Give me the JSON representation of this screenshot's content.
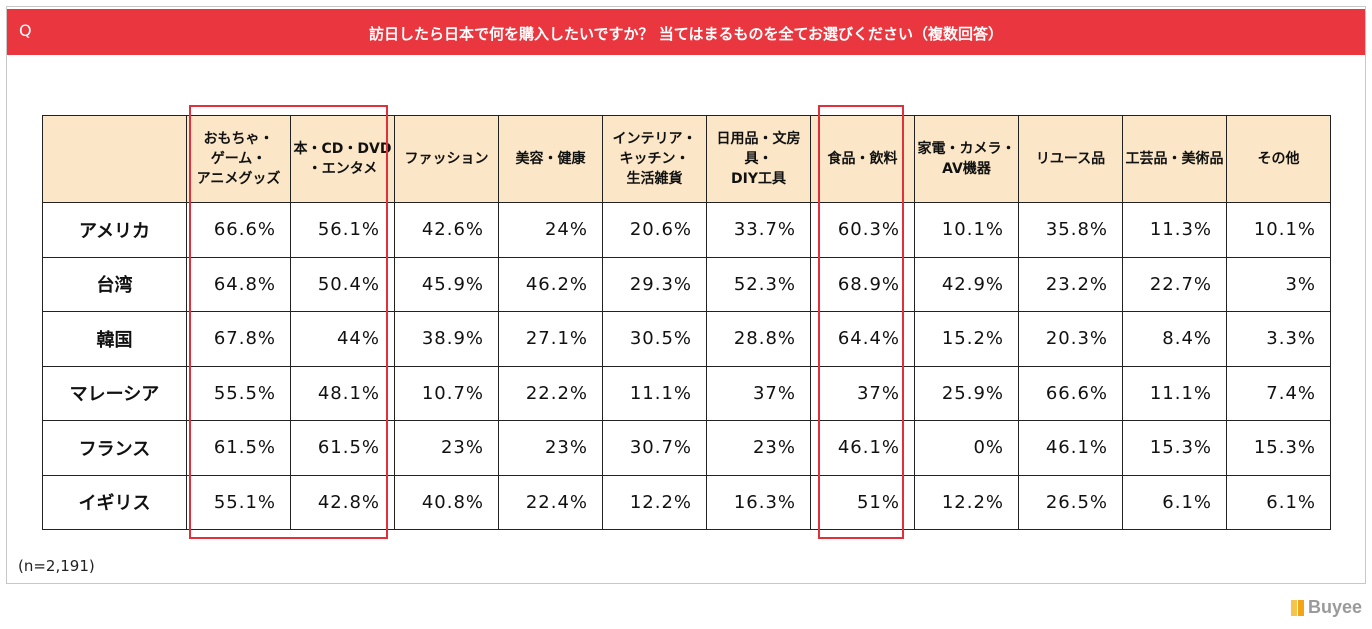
{
  "title": {
    "badge": "Q",
    "text": "訪日したら日本で何を購入したいですか？ 当てはまるものを全てお選びください（複数回答）"
  },
  "columns": [
    "",
    "おもちゃ・\nゲーム・\nアニメグッズ",
    "本・CD・DVD\n・エンタメ",
    "ファッション",
    "美容・健康",
    "インテリア・\nキッチン・\n生活雑貨",
    "日用品・文房具・\nDIY工具",
    "食品・飲料",
    "家電・カメラ・\nAV機器",
    "リユース品",
    "工芸品・美術品",
    "その他"
  ],
  "rows": [
    {
      "label": "アメリカ",
      "values": [
        "66.6%",
        "56.1%",
        "42.6%",
        "24%",
        "20.6%",
        "33.7%",
        "60.3%",
        "10.1%",
        "35.8%",
        "11.3%",
        "10.1%"
      ]
    },
    {
      "label": "台湾",
      "values": [
        "64.8%",
        "50.4%",
        "45.9%",
        "46.2%",
        "29.3%",
        "52.3%",
        "68.9%",
        "42.9%",
        "23.2%",
        "22.7%",
        "3%"
      ]
    },
    {
      "label": "韓国",
      "values": [
        "67.8%",
        "44%",
        "38.9%",
        "27.1%",
        "30.5%",
        "28.8%",
        "64.4%",
        "15.2%",
        "20.3%",
        "8.4%",
        "3.3%"
      ]
    },
    {
      "label": "マレーシア",
      "values": [
        "55.5%",
        "48.1%",
        "10.7%",
        "22.2%",
        "11.1%",
        "37%",
        "37%",
        "25.9%",
        "66.6%",
        "11.1%",
        "7.4%"
      ]
    },
    {
      "label": "フランス",
      "values": [
        "61.5%",
        "61.5%",
        "23%",
        "23%",
        "30.7%",
        "23%",
        "46.1%",
        "0%",
        "46.1%",
        "15.3%",
        "15.3%"
      ]
    },
    {
      "label": "イギリス",
      "values": [
        "55.1%",
        "42.8%",
        "40.8%",
        "22.4%",
        "12.2%",
        "16.3%",
        "51%",
        "12.2%",
        "26.5%",
        "6.1%",
        "6.1%"
      ]
    }
  ],
  "note": "(n=2,191)",
  "brand": "Buyee",
  "colors": {
    "accent": "#e9363f",
    "header_bg": "#fbe7c7",
    "highlight": "#e0303c",
    "brand": "#f2a516"
  },
  "chart_data": {
    "type": "table",
    "title": "訪日したら日本で何を購入したいですか？ 当てはまるものを全てお選びください（複数回答）",
    "categories": [
      "おもちゃ・ゲーム・アニメグッズ",
      "本・CD・DVD・エンタメ",
      "ファッション",
      "美容・健康",
      "インテリア・キッチン・生活雑貨",
      "日用品・文房具・DIY工具",
      "食品・飲料",
      "家電・カメラ・AV機器",
      "リユース品",
      "工芸品・美術品",
      "その他"
    ],
    "series": [
      {
        "name": "アメリカ",
        "values": [
          66.6,
          56.1,
          42.6,
          24,
          20.6,
          33.7,
          60.3,
          10.1,
          35.8,
          11.3,
          10.1
        ]
      },
      {
        "name": "台湾",
        "values": [
          64.8,
          50.4,
          45.9,
          46.2,
          29.3,
          52.3,
          68.9,
          42.9,
          23.2,
          22.7,
          3
        ]
      },
      {
        "name": "韓国",
        "values": [
          67.8,
          44,
          38.9,
          27.1,
          30.5,
          28.8,
          64.4,
          15.2,
          20.3,
          8.4,
          3.3
        ]
      },
      {
        "name": "マレーシア",
        "values": [
          55.5,
          48.1,
          10.7,
          22.2,
          11.1,
          37,
          37,
          25.9,
          66.6,
          11.1,
          7.4
        ]
      },
      {
        "name": "フランス",
        "values": [
          61.5,
          61.5,
          23,
          23,
          30.7,
          23,
          46.1,
          0,
          46.1,
          15.3,
          15.3
        ]
      },
      {
        "name": "イギリス",
        "values": [
          55.1,
          42.8,
          40.8,
          22.4,
          12.2,
          16.3,
          51,
          12.2,
          26.5,
          6.1,
          6.1
        ]
      }
    ]
  }
}
